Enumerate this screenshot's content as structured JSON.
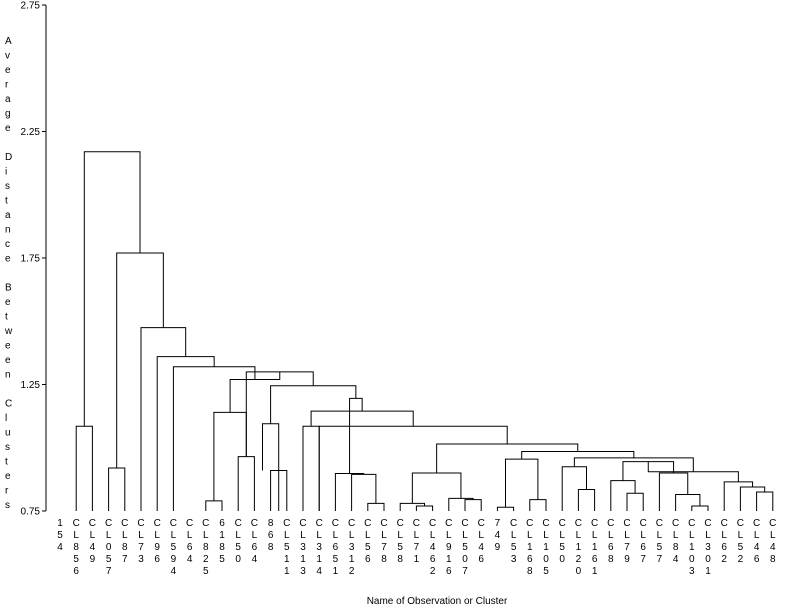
{
  "chart_data": {
    "type": "dendrogram",
    "ylabel": "Average Distance Between Clusters",
    "xlabel": "Name of Observation or Cluster",
    "ylim": [
      0.75,
      2.75
    ],
    "yticks": [
      "0.75",
      "1.25",
      "1.75",
      "2.25",
      "2.75"
    ],
    "leaves": [
      "1 5 4",
      "C L 8 5 6",
      "C L 4 9",
      "C L 0 5 7",
      "C L 8 7",
      "C L 7 3",
      "C L 9 6",
      "C L 5 9 4",
      "C L 6 4",
      "C L 8 2 5",
      "6 1 8 5",
      "C L 5 0",
      "C L 6 4",
      "8 6 8",
      "C L 5 1 1",
      "C L 3 1 3",
      "C L 3 1 4",
      "C L 6 5 1",
      "C L 3 1 2",
      "C L 5 6",
      "C L 7 8",
      "C L 5 8",
      "C L 7 1",
      "C L 4 6 2",
      "C L 9 1 6",
      "C L 5 0 7",
      "C L 4 6",
      "7 4 9",
      "C L 5 3",
      "C L 1 6 8",
      "C L 1 0 5",
      "C L 5 0",
      "C L 1 2 0",
      "C L 1 6 1",
      "C L 6 8",
      "C L 7 9",
      "C L 6 7",
      "C L 5 7",
      "C L 8 4",
      "C L 1 0 3",
      "C L 3 0 1",
      "C L 6 2",
      "C L 5 2",
      "C L 4 6",
      "C L 4 8"
    ],
    "merges": [
      {
        "x": [
          1,
          2
        ],
        "y": [
          0.75,
          0.75
        ],
        "h": 1.085
      },
      {
        "x": [
          3,
          4
        ],
        "y": [
          0.75,
          0.75
        ],
        "h": 0.92
      },
      {
        "x": [
          9,
          10
        ],
        "y": [
          0.75,
          0.75
        ],
        "h": 0.79
      },
      {
        "x": [
          11,
          12
        ],
        "y": [
          0.75,
          0.75
        ],
        "h": 0.965
      },
      {
        "x": [
          13,
          14
        ],
        "y": [
          0.75,
          0.75
        ],
        "h": 0.91
      },
      {
        "x": [
          12.5,
          13.5
        ],
        "y": [
          0.91,
          0.75
        ],
        "h": 1.095
      },
      {
        "x": [
          15,
          16
        ],
        "y": [
          0.75,
          0.75
        ],
        "h": 1.085
      },
      {
        "x": [
          19,
          20
        ],
        "y": [
          0.75,
          0.75
        ],
        "h": 0.78
      },
      {
        "x": [
          18,
          19.5
        ],
        "y": [
          0.75,
          0.78
        ],
        "h": 0.895
      },
      {
        "x": [
          17,
          18.75
        ],
        "y": [
          0.75,
          0.895
        ],
        "h": 0.898
      },
      {
        "x": [
          22,
          23
        ],
        "y": [
          0.75,
          0.75
        ],
        "h": 0.77
      },
      {
        "x": [
          21,
          22.5
        ],
        "y": [
          0.75,
          0.77
        ],
        "h": 0.78
      },
      {
        "x": [
          25,
          26
        ],
        "y": [
          0.75,
          0.75
        ],
        "h": 0.795
      },
      {
        "x": [
          24,
          25.5
        ],
        "y": [
          0.75,
          0.795
        ],
        "h": 0.8
      },
      {
        "x": [
          21.75,
          24.75
        ],
        "y": [
          0.78,
          0.8
        ],
        "h": 0.9
      },
      {
        "x": [
          27,
          28
        ],
        "y": [
          0.75,
          0.75
        ],
        "h": 0.765
      },
      {
        "x": [
          29,
          30
        ],
        "y": [
          0.75,
          0.75
        ],
        "h": 0.795
      },
      {
        "x": [
          27.5,
          29.5
        ],
        "y": [
          0.765,
          0.795
        ],
        "h": 0.955
      },
      {
        "x": [
          32,
          33
        ],
        "y": [
          0.75,
          0.75
        ],
        "h": 0.835
      },
      {
        "x": [
          31,
          32.5
        ],
        "y": [
          0.75,
          0.835
        ],
        "h": 0.925
      },
      {
        "x": [
          35,
          36
        ],
        "y": [
          0.75,
          0.75
        ],
        "h": 0.82
      },
      {
        "x": [
          34,
          35.5
        ],
        "y": [
          0.75,
          0.82
        ],
        "h": 0.87
      },
      {
        "x": [
          39,
          40
        ],
        "y": [
          0.75,
          0.75
        ],
        "h": 0.77
      },
      {
        "x": [
          38,
          39.5
        ],
        "y": [
          0.75,
          0.77
        ],
        "h": 0.815
      },
      {
        "x": [
          37,
          38.75
        ],
        "y": [
          0.75,
          0.815
        ],
        "h": 0.9
      },
      {
        "x": [
          34.75,
          37.875
        ],
        "y": [
          0.87,
          0.9
        ],
        "h": 0.945
      },
      {
        "x": [
          43,
          44
        ],
        "y": [
          0.75,
          0.75
        ],
        "h": 0.825
      },
      {
        "x": [
          42,
          43.5
        ],
        "y": [
          0.75,
          0.825
        ],
        "h": 0.845
      },
      {
        "x": [
          41,
          42.75
        ],
        "y": [
          0.75,
          0.845
        ],
        "h": 0.865
      },
      {
        "x": [
          36.3125,
          41.875
        ],
        "y": [
          0.945,
          0.865
        ],
        "h": 0.905
      },
      {
        "x": [
          31.75,
          39.09375
        ],
        "y": [
          0.925,
          0.905
        ],
        "h": 0.96
      },
      {
        "x": [
          28.5,
          35.421875
        ],
        "y": [
          0.955,
          0.96
        ],
        "h": 0.985
      },
      {
        "x": [
          23.25,
          31.9609
        ],
        "y": [
          0.9,
          0.985
        ],
        "h": 1.015
      },
      {
        "x": [
          16,
          27.6055
        ],
        "y": [
          0.75,
          1.015
        ],
        "h": 1.085
      },
      {
        "x": [
          15.5,
          21.8027
        ],
        "y": [
          1.085,
          1.085
        ],
        "h": 1.145
      },
      {
        "x": [
          17.875,
          18.6514
        ],
        "y": [
          0.898,
          1.145
        ],
        "h": 1.195
      },
      {
        "x": [
          13,
          18.2632
        ],
        "y": [
          1.095,
          1.195
        ],
        "h": 1.245
      },
      {
        "x": [
          11.5,
          15.6316
        ],
        "y": [
          0.965,
          1.245
        ],
        "h": 1.3
      },
      {
        "x": [
          9.5,
          11.5
        ],
        "y": [
          0.79,
          0.965
        ],
        "h": 1.14
      },
      {
        "x": [
          10.5,
          13.5658
        ],
        "y": [
          1.14,
          1.3
        ],
        "h": 1.27
      },
      {
        "x": [
          7,
          12.0329
        ],
        "y": [
          0.75,
          1.27
        ],
        "h": 1.32
      },
      {
        "x": [
          6,
          9.5164
        ],
        "y": [
          0.75,
          1.32
        ],
        "h": 1.36
      },
      {
        "x": [
          5,
          7.7582
        ],
        "y": [
          0.75,
          1.36
        ],
        "h": 1.475
      },
      {
        "x": [
          3.5,
          6.3791
        ],
        "y": [
          0.92,
          1.475
        ],
        "h": 1.77
      },
      {
        "x": [
          1.5,
          4.9396
        ],
        "y": [
          1.085,
          1.77
        ],
        "h": 2.17
      }
    ]
  }
}
